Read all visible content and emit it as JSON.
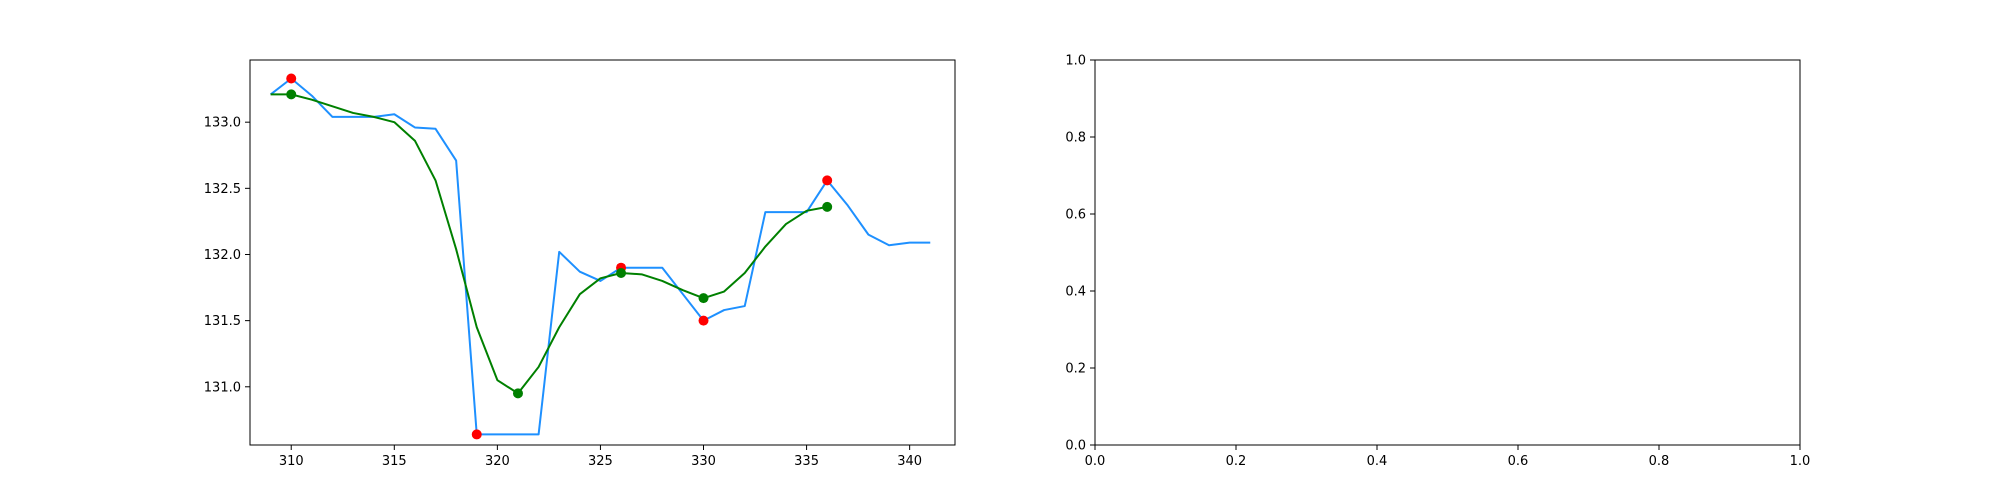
{
  "chart_data": [
    {
      "type": "line",
      "xlim": [
        308.0,
        342.2
      ],
      "ylim": [
        130.56,
        133.47
      ],
      "x_ticks": [
        310,
        315,
        320,
        325,
        330,
        335,
        340
      ],
      "y_ticks": [
        131.0,
        131.5,
        132.0,
        132.5,
        133.0
      ],
      "x_tick_labels": [
        "310",
        "315",
        "320",
        "325",
        "330",
        "335",
        "340"
      ],
      "y_tick_labels": [
        "131.0",
        "131.5",
        "132.0",
        "132.5",
        "133.0"
      ],
      "grid": false,
      "series": [
        {
          "kind": "line",
          "color": "#1e90ff",
          "x": [
            309,
            310,
            311,
            312,
            313,
            314,
            315,
            316,
            317,
            318,
            319,
            320,
            321,
            322,
            323,
            324,
            325,
            326,
            327,
            328,
            329,
            330,
            331,
            332,
            333,
            334,
            335,
            336,
            337,
            338,
            339,
            340,
            341
          ],
          "y": [
            133.21,
            133.33,
            133.2,
            133.04,
            133.04,
            133.04,
            133.06,
            132.96,
            132.95,
            132.71,
            130.64,
            130.64,
            130.64,
            130.64,
            132.02,
            131.87,
            131.8,
            131.9,
            131.9,
            131.9,
            131.7,
            131.5,
            131.58,
            131.61,
            132.32,
            132.32,
            132.32,
            132.56,
            132.37,
            132.15,
            132.07,
            132.09,
            132.09
          ]
        },
        {
          "kind": "line",
          "color": "#008000",
          "x": [
            309,
            310,
            311,
            312,
            313,
            314,
            315,
            316,
            317,
            318,
            319,
            320,
            321,
            322,
            323,
            324,
            325,
            326,
            327,
            328,
            329,
            330,
            331,
            332,
            333,
            334,
            335,
            336
          ],
          "y": [
            133.21,
            133.21,
            133.17,
            133.12,
            133.07,
            133.04,
            133.0,
            132.86,
            132.56,
            132.04,
            131.45,
            131.05,
            130.95,
            131.15,
            131.45,
            131.7,
            131.82,
            131.86,
            131.85,
            131.8,
            131.73,
            131.67,
            131.72,
            131.86,
            132.06,
            132.23,
            132.33,
            132.36
          ]
        },
        {
          "kind": "scatter",
          "color": "#ff0000",
          "x": [
            310,
            319,
            326,
            330,
            336
          ],
          "y": [
            133.33,
            130.64,
            131.9,
            131.5,
            132.56
          ]
        },
        {
          "kind": "scatter",
          "color": "#008000",
          "x": [
            310,
            321,
            326,
            330,
            336
          ],
          "y": [
            133.21,
            130.95,
            131.86,
            131.67,
            132.36
          ]
        }
      ]
    },
    {
      "type": "line",
      "xlim": [
        0.0,
        1.0
      ],
      "ylim": [
        0.0,
        1.0
      ],
      "x_ticks": [
        0.0,
        0.2,
        0.4,
        0.6,
        0.8,
        1.0
      ],
      "y_ticks": [
        0.0,
        0.2,
        0.4,
        0.6,
        0.8,
        1.0
      ],
      "x_tick_labels": [
        "0.0",
        "0.2",
        "0.4",
        "0.6",
        "0.8",
        "1.0"
      ],
      "y_tick_labels": [
        "0.0",
        "0.2",
        "0.4",
        "0.6",
        "0.8",
        "1.0"
      ],
      "grid": false,
      "series": []
    }
  ]
}
